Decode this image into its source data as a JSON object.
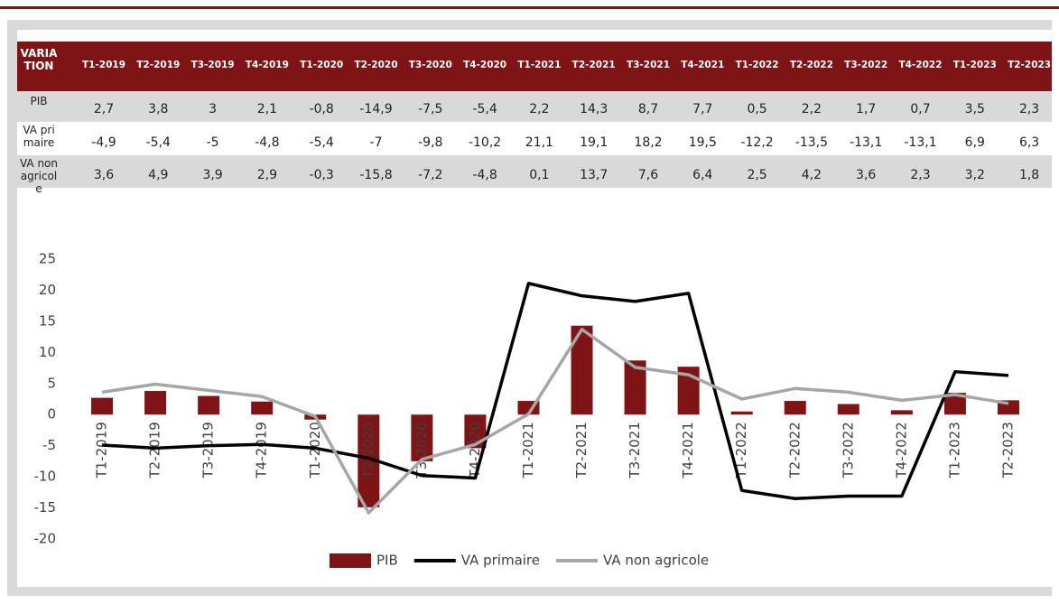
{
  "table": {
    "corner": "VARIATION",
    "rows": [
      {
        "label": "PIB",
        "cells": [
          "2,7",
          "3,8",
          "3",
          "2,1",
          "-0,8",
          "-14,9",
          "-7,5",
          "-5,4",
          "2,2",
          "14,3",
          "8,7",
          "7,7",
          "0,5",
          "2,2",
          "1,7",
          "0,7",
          "3,5",
          "2,3"
        ]
      },
      {
        "label": "VA primaire",
        "cells": [
          "-4,9",
          "-5,4",
          "-5",
          "-4,8",
          "-5,4",
          "-7",
          "-9,8",
          "-10,2",
          "21,1",
          "19,1",
          "18,2",
          "19,5",
          "-12,2",
          "-13,5",
          "-13,1",
          "-13,1",
          "6,9",
          "6,3"
        ]
      },
      {
        "label": "VA non agricole",
        "cells": [
          "3,6",
          "4,9",
          "3,9",
          "2,9",
          "-0,3",
          "-15,8",
          "-7,2",
          "-4,8",
          "0,1",
          "13,7",
          "7,6",
          "6,4",
          "2,5",
          "4,2",
          "3,6",
          "2,3",
          "3,2",
          "1,8"
        ]
      }
    ]
  },
  "chart_data": {
    "type": "bar",
    "categories": [
      "T1-2019",
      "T2-2019",
      "T3-2019",
      "T4-2019",
      "T1-2020",
      "T2-2020",
      "T3-2020",
      "T4-2020",
      "T1-2021",
      "T2-2021",
      "T3-2021",
      "T4-2021",
      "T1-2022",
      "T2-2022",
      "T3-2022",
      "T4-2022",
      "T1-2023",
      "T2-2023"
    ],
    "series": [
      {
        "name": "PIB",
        "type": "bar",
        "color": "#7f1416",
        "values": [
          2.7,
          3.8,
          3,
          2.1,
          -0.8,
          -14.9,
          -7.5,
          -5.4,
          2.2,
          14.3,
          8.7,
          7.7,
          0.5,
          2.2,
          1.7,
          0.7,
          3.5,
          2.3
        ]
      },
      {
        "name": "VA primaire",
        "type": "line",
        "color": "#000000",
        "values": [
          -4.9,
          -5.4,
          -5,
          -4.8,
          -5.4,
          -7,
          -9.8,
          -10.2,
          21.1,
          19.1,
          18.2,
          19.5,
          -12.2,
          -13.5,
          -13.1,
          -13.1,
          6.9,
          6.3
        ]
      },
      {
        "name": "VA non agricole",
        "type": "line",
        "color": "#a6a6a6",
        "values": [
          3.6,
          4.9,
          3.9,
          2.9,
          -0.3,
          -15.8,
          -7.2,
          -4.8,
          0.1,
          13.7,
          7.6,
          6.4,
          2.5,
          4.2,
          3.6,
          2.3,
          3.2,
          1.8
        ]
      }
    ],
    "ylim": [
      -20,
      25
    ],
    "yticks": [
      -20,
      -15,
      -10,
      -5,
      0,
      5,
      10,
      15,
      20,
      25
    ],
    "legend": "bottom"
  }
}
